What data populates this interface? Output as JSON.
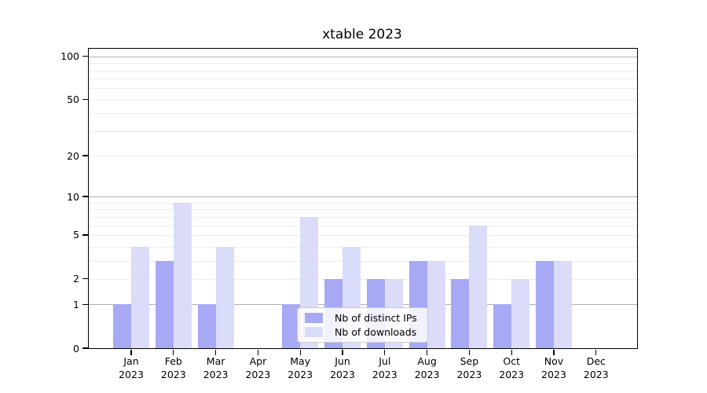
{
  "chart_data": {
    "type": "bar",
    "title": "xtable 2023",
    "categories": [
      "Jan",
      "Feb",
      "Mar",
      "Apr",
      "May",
      "Jun",
      "Jul",
      "Aug",
      "Sep",
      "Oct",
      "Nov",
      "Dec"
    ],
    "year_label": "2023",
    "series": [
      {
        "name": "Nb of distinct IPs",
        "color": "#a8a9f4",
        "values": [
          1,
          3,
          1,
          0,
          1,
          2,
          2,
          3,
          2,
          1,
          3,
          0
        ]
      },
      {
        "name": "Nb of downloads",
        "color": "#dadcf9",
        "values": [
          4,
          9,
          4,
          0,
          7,
          4,
          2,
          3,
          6,
          2,
          3,
          0
        ]
      }
    ],
    "yscale": "log1p",
    "ylim": [
      0,
      113
    ],
    "yticks": [
      0,
      1,
      2,
      5,
      10,
      20,
      50,
      100
    ],
    "grid_major": [
      1,
      10,
      100
    ],
    "grid_minor": [
      2,
      3,
      4,
      5,
      6,
      7,
      8,
      9,
      20,
      30,
      40,
      50,
      60,
      70,
      80,
      90
    ],
    "grid_minor_color": "#ececec",
    "grid_major_color": "#b0b0b0",
    "legend_position": "lower center",
    "xlabel": "",
    "ylabel": ""
  }
}
